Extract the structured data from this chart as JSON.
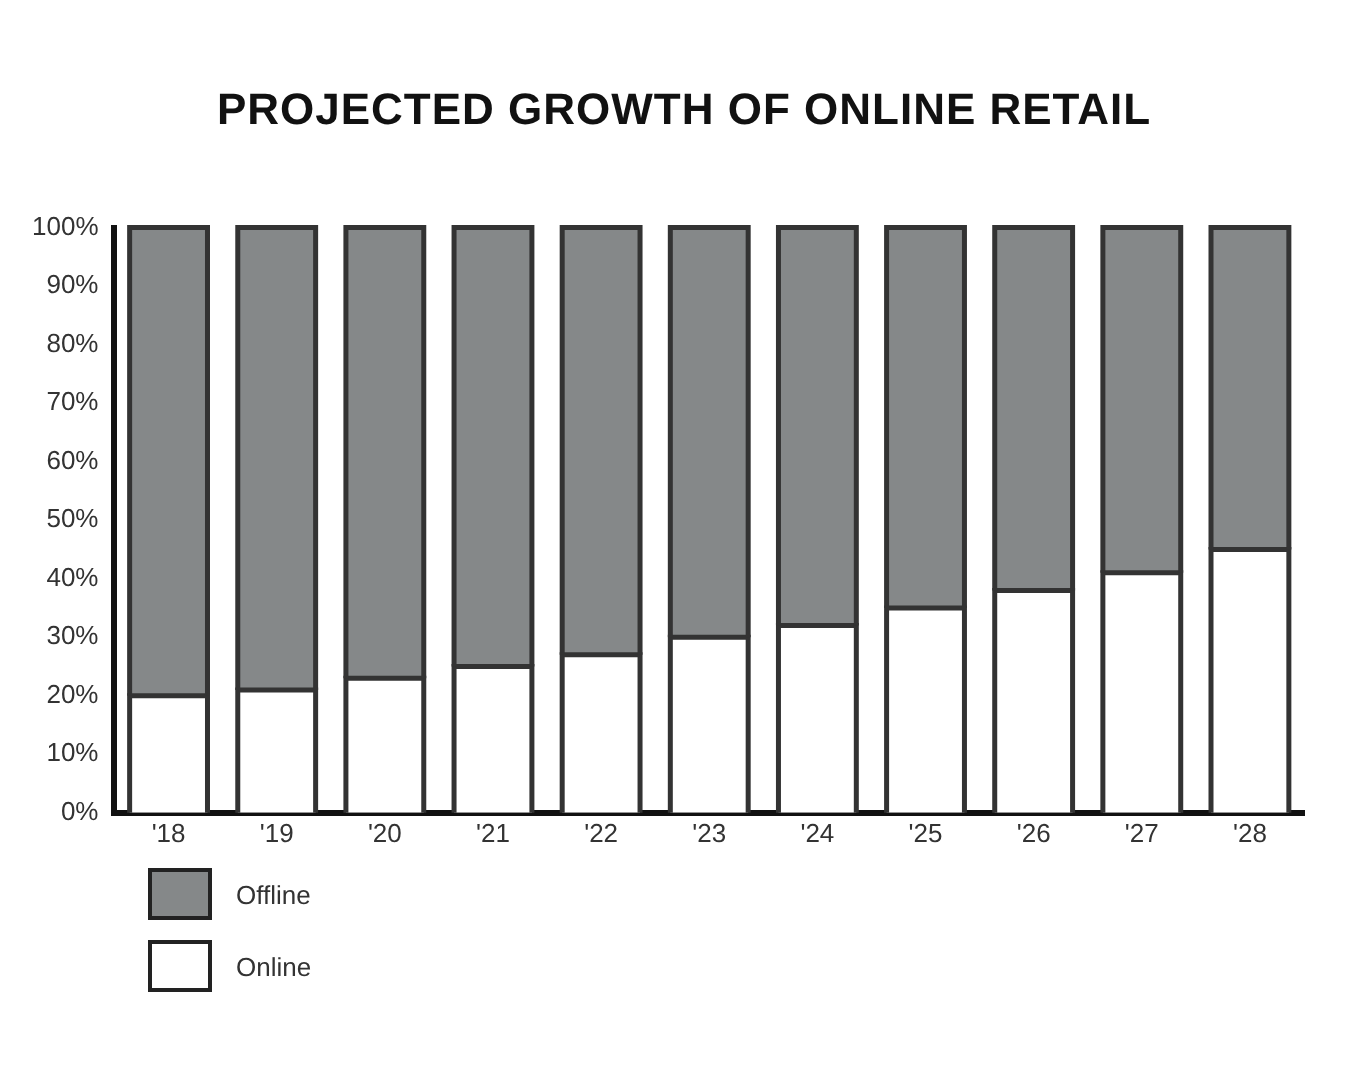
{
  "chart_data": {
    "type": "bar",
    "title": "PROJECTED GROWTH OF ONLINE RETAIL",
    "categories": [
      "'18",
      "'19",
      "'20",
      "'21",
      "'22",
      "'23",
      "'24",
      "'25",
      "'26",
      "'27",
      "'28"
    ],
    "stacked": true,
    "legend": "bottom left",
    "grid": false,
    "series": [
      {
        "name": "Online",
        "color": "#ffffff",
        "values": [
          20,
          21,
          23,
          25,
          27,
          30,
          32,
          35,
          38,
          41,
          45
        ]
      },
      {
        "name": "Offline",
        "color": "#858889",
        "values": [
          80,
          79,
          77,
          75,
          73,
          70,
          68,
          65,
          62,
          59,
          55
        ]
      }
    ],
    "ylim": [
      0,
      100
    ],
    "yticks": [
      {
        "value": 0,
        "label": "0%"
      },
      {
        "value": 10,
        "label": "10%"
      },
      {
        "value": 20,
        "label": "20%"
      },
      {
        "value": 30,
        "label": "30%"
      },
      {
        "value": 40,
        "label": "40%"
      },
      {
        "value": 50,
        "label": "50%"
      },
      {
        "value": 60,
        "label": "60%"
      },
      {
        "value": 70,
        "label": "70%"
      },
      {
        "value": 80,
        "label": "80%"
      },
      {
        "value": 90,
        "label": "90%"
      },
      {
        "value": 100,
        "label": "100%"
      }
    ]
  }
}
